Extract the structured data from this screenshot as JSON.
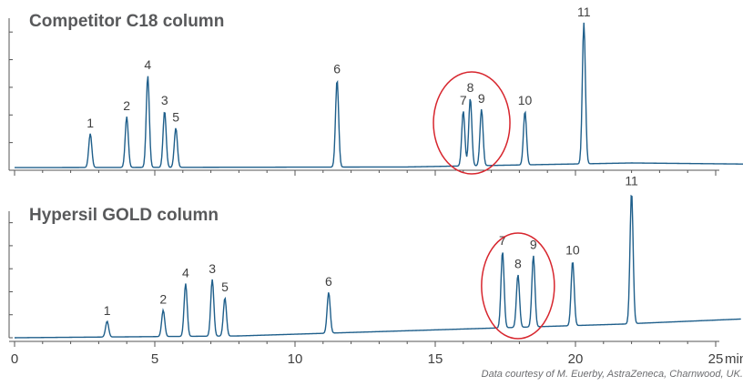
{
  "chart_data": [
    {
      "type": "line",
      "title": "Competitor C18 column",
      "xlabel": "min",
      "xlim": [
        0,
        26
      ],
      "line_color": "#1f5f8b",
      "highlight_color": "#d7262e",
      "highlight_peaks": [
        "7",
        "8",
        "9"
      ],
      "peaks": [
        {
          "label": "1",
          "x": 2.7,
          "y": 0.24
        },
        {
          "label": "2",
          "x": 4.0,
          "y": 0.36
        },
        {
          "label": "4",
          "x": 4.75,
          "y": 0.65
        },
        {
          "label": "3",
          "x": 5.35,
          "y": 0.4
        },
        {
          "label": "5",
          "x": 5.75,
          "y": 0.28
        },
        {
          "label": "6",
          "x": 11.5,
          "y": 0.62
        },
        {
          "label": "7",
          "x": 16.0,
          "y": 0.39
        },
        {
          "label": "8",
          "x": 16.25,
          "y": 0.48
        },
        {
          "label": "9",
          "x": 16.65,
          "y": 0.4
        },
        {
          "label": "10",
          "x": 18.2,
          "y": 0.38
        },
        {
          "label": "11",
          "x": 20.3,
          "y": 1.0
        }
      ]
    },
    {
      "type": "line",
      "title": "Hypersil GOLD column",
      "xlabel": "min",
      "xlim": [
        0,
        26
      ],
      "line_color": "#1f5f8b",
      "highlight_color": "#d7262e",
      "highlight_peaks": [
        "7",
        "8",
        "9"
      ],
      "x_ticks": [
        0,
        5,
        10,
        15,
        20,
        25
      ],
      "peaks": [
        {
          "label": "1",
          "x": 3.3,
          "y": 0.12
        },
        {
          "label": "2",
          "x": 5.3,
          "y": 0.2
        },
        {
          "label": "4",
          "x": 6.1,
          "y": 0.4
        },
        {
          "label": "3",
          "x": 7.05,
          "y": 0.43
        },
        {
          "label": "5",
          "x": 7.5,
          "y": 0.29
        },
        {
          "label": "6",
          "x": 11.2,
          "y": 0.31
        },
        {
          "label": "7",
          "x": 17.4,
          "y": 0.58
        },
        {
          "label": "8",
          "x": 17.95,
          "y": 0.4
        },
        {
          "label": "9",
          "x": 18.5,
          "y": 0.54
        },
        {
          "label": "10",
          "x": 19.9,
          "y": 0.49
        },
        {
          "label": "11",
          "x": 22.0,
          "y": 1.0
        }
      ]
    }
  ],
  "credit": "Data courtesy of M. Euerby, AstraZeneca, Charnwood, UK."
}
